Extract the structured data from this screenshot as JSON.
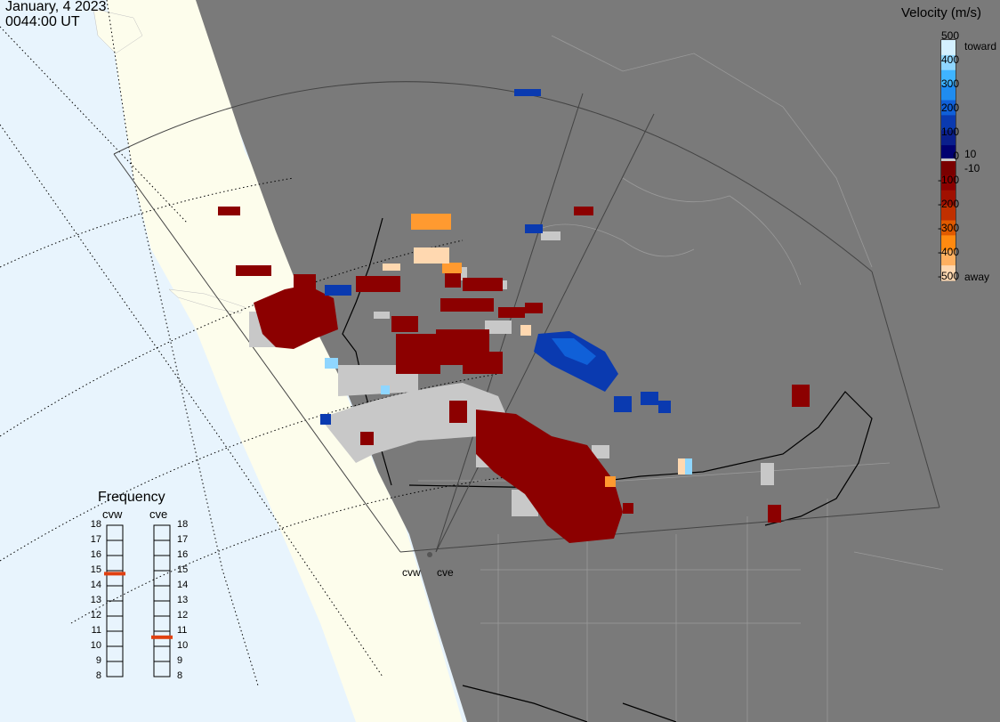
{
  "header": {
    "date": "January, 4 2023",
    "time": "0044:00 UT"
  },
  "colorbar": {
    "title": "Velocity (m/s)",
    "ticks": [
      "500",
      "400",
      "300",
      "200",
      "100",
      "0",
      "-100",
      "-200",
      "-300",
      "-400",
      "-500"
    ],
    "toward_label": "toward",
    "away_label": "away",
    "pos_small": "10",
    "neg_small": "-10",
    "colors": [
      "#d4f0ff",
      "#8fd6ff",
      "#3fb4ff",
      "#1f8cf0",
      "#1060d8",
      "#0a3ab0",
      "#0a1f8c",
      "#000070",
      "#7a0000",
      "#8c0000",
      "#a01000",
      "#c03000",
      "#e05a00",
      "#ff8a10",
      "#ffb060",
      "#ffd8b0"
    ]
  },
  "frequency": {
    "title": "Frequency",
    "radars": [
      {
        "code": "cvw",
        "freq_mhz": 14.8
      },
      {
        "code": "cve",
        "freq_mhz": 10.6
      }
    ],
    "scale": [
      "18",
      "17",
      "16",
      "15",
      "14",
      "13",
      "12",
      "11",
      "10",
      "9",
      "8"
    ],
    "marker_color": "#e04010"
  },
  "sites": [
    {
      "code": "cvw"
    },
    {
      "code": "cve"
    }
  ],
  "colors": {
    "ocean": "#e8f4fd",
    "land": "#fdfdec",
    "night": "#7a7a7a",
    "ground_scatter": "#c8c8c8"
  }
}
